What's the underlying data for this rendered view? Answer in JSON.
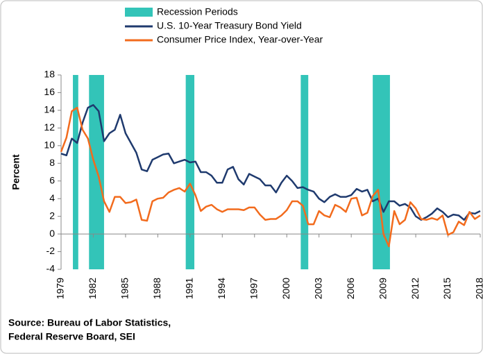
{
  "chart_data": {
    "type": "line",
    "y_label": "Percent",
    "recession_label": "Recession Periods",
    "recession_color": "#33c4b8",
    "recessions": [
      [
        1980.1,
        1980.6
      ],
      [
        1981.6,
        1983.0
      ],
      [
        1990.6,
        1991.4
      ],
      [
        2001.3,
        2002.0
      ],
      [
        2008.0,
        2009.6
      ]
    ],
    "x": [
      1979,
      1979.5,
      1980,
      1980.5,
      1981,
      1981.5,
      1982,
      1982.5,
      1983,
      1983.5,
      1984,
      1984.5,
      1985,
      1985.5,
      1986,
      1986.5,
      1987,
      1987.5,
      1988,
      1988.5,
      1989,
      1989.5,
      1990,
      1990.5,
      1991,
      1991.5,
      1992,
      1992.5,
      1993,
      1993.5,
      1994,
      1994.5,
      1995,
      1995.5,
      1996,
      1996.5,
      1997,
      1997.5,
      1998,
      1998.5,
      1999,
      1999.5,
      2000,
      2000.5,
      2001,
      2001.5,
      2002,
      2002.5,
      2003,
      2003.5,
      2004,
      2004.5,
      2005,
      2005.5,
      2006,
      2006.5,
      2007,
      2007.5,
      2008,
      2008.5,
      2009,
      2009.5,
      2010,
      2010.5,
      2011,
      2011.5,
      2012,
      2012.5,
      2013,
      2013.5,
      2014,
      2014.5,
      2015,
      2015.5,
      2016,
      2016.5,
      2017,
      2017.5,
      2018
    ],
    "series": [
      {
        "name": "U.S. 10-Year Treasury Bond Yield",
        "color": "#1f3a6e",
        "values": [
          9.1,
          8.9,
          10.8,
          10.3,
          12.6,
          14.3,
          14.6,
          13.9,
          10.5,
          11.4,
          11.8,
          13.5,
          11.4,
          10.3,
          9.2,
          7.3,
          7.1,
          8.4,
          8.7,
          9.0,
          9.1,
          8.0,
          8.2,
          8.4,
          8.1,
          8.2,
          7.0,
          7.0,
          6.6,
          5.8,
          5.8,
          7.3,
          7.6,
          6.2,
          5.6,
          6.8,
          6.5,
          6.2,
          5.5,
          5.5,
          4.7,
          5.8,
          6.6,
          6.0,
          5.2,
          5.3,
          5.0,
          4.8,
          4.0,
          3.6,
          4.2,
          4.5,
          4.2,
          4.2,
          4.4,
          5.1,
          4.8,
          5.0,
          3.7,
          4.0,
          2.5,
          3.7,
          3.7,
          3.2,
          3.4,
          3.0,
          2.0,
          1.6,
          1.9,
          2.3,
          2.9,
          2.5,
          1.9,
          2.2,
          2.1,
          1.6,
          2.4,
          2.3,
          2.6
        ]
      },
      {
        "name": "Consumer Price Index, Year-over-Year",
        "color": "#f26b1d",
        "values": [
          9.3,
          10.9,
          13.9,
          14.3,
          11.8,
          10.8,
          8.4,
          6.5,
          3.7,
          2.5,
          4.2,
          4.2,
          3.5,
          3.6,
          3.9,
          1.6,
          1.5,
          3.7,
          4.0,
          4.1,
          4.7,
          5.0,
          5.2,
          4.8,
          5.7,
          4.4,
          2.6,
          3.1,
          3.3,
          2.8,
          2.5,
          2.8,
          2.8,
          2.8,
          2.7,
          3.0,
          3.0,
          2.2,
          1.6,
          1.7,
          1.7,
          2.1,
          2.7,
          3.7,
          3.7,
          3.2,
          1.1,
          1.1,
          2.6,
          2.1,
          1.9,
          3.3,
          3.0,
          2.5,
          4.0,
          4.1,
          2.1,
          2.4,
          4.3,
          5.0,
          0.0,
          -1.4,
          2.6,
          1.1,
          1.6,
          3.6,
          2.9,
          1.7,
          1.6,
          1.8,
          1.6,
          2.1,
          -0.1,
          0.2,
          1.4,
          1.0,
          2.5,
          1.7,
          2.1
        ]
      }
    ],
    "xlim": [
      1979,
      2018
    ],
    "xticks": [
      1979,
      1982,
      1985,
      1988,
      1991,
      1994,
      1997,
      2000,
      2003,
      2006,
      2009,
      2012,
      2015,
      2018
    ],
    "ylim": [
      -4,
      18
    ],
    "yticks": [
      -4,
      -2,
      0,
      2,
      4,
      6,
      8,
      10,
      12,
      14,
      16,
      18
    ],
    "source": [
      "Source: Bureau of Labor Statistics,",
      "Federal Reserve Board, SEI"
    ]
  }
}
